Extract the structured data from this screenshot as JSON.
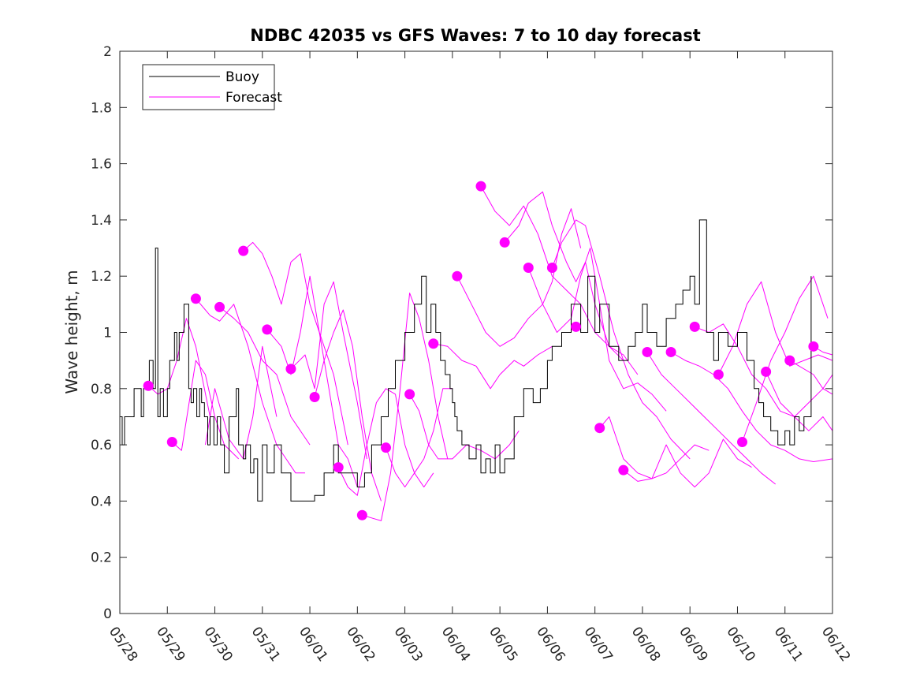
{
  "chart_data": {
    "type": "line",
    "title": "NDBC 42035 vs GFS Waves: 7 to 10 day forecast",
    "xlabel": "",
    "ylabel": "Wave height, m",
    "xlim_days": [
      0,
      15
    ],
    "ylim": [
      0,
      2
    ],
    "x_tick_labels": [
      "05/28",
      "05/29",
      "05/30",
      "05/31",
      "06/01",
      "06/02",
      "06/03",
      "06/04",
      "06/05",
      "06/06",
      "06/07",
      "06/08",
      "06/09",
      "06/10",
      "06/11",
      "06/12"
    ],
    "y_ticks": [
      0,
      0.2,
      0.4,
      0.6,
      0.8,
      1,
      1.2,
      1.4,
      1.6,
      1.8,
      2
    ],
    "y_tick_labels": [
      "0",
      "0.2",
      "0.4",
      "0.6",
      "0.8",
      "1",
      "1.2",
      "1.4",
      "1.6",
      "1.8",
      "2"
    ],
    "legend": {
      "location": "top-left",
      "entries": [
        "Buoy",
        "Forecast"
      ]
    },
    "grid": false,
    "colors": {
      "buoy": "#000000",
      "forecast": "#ff00ff"
    },
    "buoy": {
      "name": "Buoy",
      "x_days": [
        0,
        0.05,
        0.1,
        0.3,
        0.45,
        0.5,
        0.55,
        0.62,
        0.7,
        0.75,
        0.8,
        0.85,
        0.92,
        1.0,
        1.05,
        1.1,
        1.15,
        1.2,
        1.25,
        1.35,
        1.45,
        1.5,
        1.55,
        1.62,
        1.68,
        1.72,
        1.78,
        1.85,
        1.9,
        1.98,
        2.05,
        2.12,
        2.2,
        2.3,
        2.45,
        2.5,
        2.6,
        2.65,
        2.75,
        2.82,
        2.9,
        3.0,
        3.1,
        3.25,
        3.4,
        3.6,
        3.75,
        3.82,
        3.9,
        4.0,
        4.1,
        4.3,
        4.5,
        4.6,
        4.8,
        5.0,
        5.15,
        5.3,
        5.5,
        5.65,
        5.8,
        6.0,
        6.2,
        6.35,
        6.45,
        6.55,
        6.65,
        6.75,
        6.85,
        6.95,
        7.0,
        7.05,
        7.1,
        7.2,
        7.35,
        7.5,
        7.6,
        7.7,
        7.8,
        7.9,
        8.0,
        8.1,
        8.3,
        8.5,
        8.7,
        8.85,
        9.0,
        9.1,
        9.3,
        9.5,
        9.7,
        9.85,
        10.0,
        10.1,
        10.3,
        10.5,
        10.7,
        10.85,
        11.0,
        11.1,
        11.3,
        11.5,
        11.7,
        11.85,
        12.0,
        12.1,
        12.2,
        12.35,
        12.5,
        12.6,
        12.8,
        13.0,
        13.2,
        13.35,
        13.45,
        13.55,
        13.7,
        13.85,
        14.0,
        14.1,
        14.2,
        14.3,
        14.4,
        14.55
      ],
      "values": [
        0.7,
        0.6,
        0.7,
        0.8,
        0.7,
        0.8,
        0.8,
        0.9,
        0.8,
        1.3,
        0.7,
        0.8,
        0.7,
        0.8,
        0.9,
        0.9,
        1.0,
        0.9,
        1.0,
        1.1,
        0.8,
        0.75,
        0.8,
        0.7,
        0.8,
        0.75,
        0.7,
        0.6,
        0.7,
        0.6,
        0.7,
        0.6,
        0.5,
        0.7,
        0.8,
        0.6,
        0.55,
        0.6,
        0.5,
        0.55,
        0.4,
        0.6,
        0.5,
        0.6,
        0.5,
        0.4,
        0.4,
        0.4,
        0.4,
        0.4,
        0.42,
        0.5,
        0.6,
        0.5,
        0.5,
        0.45,
        0.5,
        0.6,
        0.7,
        0.8,
        0.9,
        1.0,
        1.1,
        1.2,
        1.0,
        1.1,
        1.0,
        0.9,
        0.85,
        0.8,
        0.75,
        0.7,
        0.65,
        0.6,
        0.55,
        0.6,
        0.5,
        0.55,
        0.5,
        0.6,
        0.5,
        0.55,
        0.7,
        0.8,
        0.75,
        0.8,
        0.9,
        0.95,
        1.0,
        1.1,
        1.0,
        1.2,
        1.0,
        1.1,
        0.95,
        0.9,
        0.95,
        1.0,
        1.1,
        1.0,
        0.95,
        1.05,
        1.1,
        1.15,
        1.2,
        1.1,
        1.4,
        1.0,
        0.9,
        1.0,
        0.95,
        1.0,
        0.9,
        0.8,
        0.75,
        0.7,
        0.65,
        0.6,
        0.65,
        0.6,
        0.7,
        0.65,
        0.7,
        1.2
      ]
    },
    "forecast_points": {
      "x_days": [
        0.6,
        1.1,
        1.6,
        2.1,
        2.6,
        3.1,
        3.6,
        4.1,
        4.6,
        5.1,
        5.6,
        6.1,
        6.6,
        7.1,
        7.6,
        8.1,
        8.6,
        9.1,
        9.6,
        10.1,
        10.6,
        11.1,
        11.6,
        12.1,
        12.6,
        13.1,
        13.6,
        14.1,
        14.6
      ],
      "values": [
        0.81,
        0.61,
        1.12,
        1.09,
        1.29,
        1.01,
        0.87,
        0.77,
        0.52,
        0.35,
        0.59,
        0.78,
        0.96,
        1.2,
        1.52,
        1.32,
        1.23,
        1.23,
        1.02,
        0.66,
        0.51,
        0.93,
        0.93,
        1.02,
        0.85,
        0.61,
        0.86,
        0.9,
        0.95
      ]
    },
    "forecast_series": [
      {
        "x_days": [
          0.6,
          0.8,
          1.0,
          1.2,
          1.4,
          1.6,
          1.9
        ],
        "values": [
          0.81,
          0.78,
          0.8,
          0.9,
          1.05,
          0.95,
          0.7
        ]
      },
      {
        "x_days": [
          1.1,
          1.3,
          1.6,
          1.8,
          2.0,
          2.2,
          2.5
        ],
        "values": [
          0.61,
          0.58,
          0.9,
          0.85,
          0.7,
          0.6,
          0.55
        ]
      },
      {
        "x_days": [
          1.6,
          1.9,
          2.1,
          2.4,
          2.7,
          3.0,
          3.3,
          3.5,
          3.7,
          3.9
        ],
        "values": [
          1.12,
          1.06,
          1.04,
          1.1,
          0.95,
          0.75,
          0.6,
          0.55,
          0.5,
          0.5
        ]
      },
      {
        "x_days": [
          1.8,
          2.0,
          2.3,
          2.6,
          2.8,
          3.0,
          3.3
        ],
        "values": [
          0.6,
          0.8,
          0.62,
          0.55,
          0.7,
          0.95,
          0.7
        ]
      },
      {
        "x_days": [
          2.1,
          2.4,
          2.7,
          3.0,
          3.3,
          3.6,
          4.0
        ],
        "values": [
          1.09,
          1.05,
          1.0,
          0.9,
          0.85,
          0.7,
          0.6
        ]
      },
      {
        "x_days": [
          2.6,
          2.8,
          3.0,
          3.2,
          3.4,
          3.6,
          3.8,
          4.0,
          4.3,
          4.5,
          4.8
        ],
        "values": [
          1.29,
          1.32,
          1.28,
          1.2,
          1.1,
          1.25,
          1.28,
          1.1,
          0.95,
          0.85,
          0.6
        ]
      },
      {
        "x_days": [
          3.1,
          3.4,
          3.6,
          3.8,
          4.0,
          4.2,
          4.4,
          4.6,
          4.8,
          5.0
        ],
        "values": [
          1.01,
          0.95,
          0.85,
          1.0,
          1.2,
          1.0,
          0.8,
          0.6,
          0.55,
          0.45
        ]
      },
      {
        "x_days": [
          3.6,
          3.9,
          4.1,
          4.3,
          4.5,
          4.7,
          5.0,
          5.2
        ],
        "values": [
          0.87,
          0.92,
          0.8,
          1.1,
          1.18,
          1.0,
          0.75,
          0.55
        ]
      },
      {
        "x_days": [
          4.1,
          4.3,
          4.5,
          4.7,
          4.9,
          5.1,
          5.3,
          5.5
        ],
        "values": [
          0.77,
          0.9,
          1.0,
          1.08,
          0.95,
          0.7,
          0.5,
          0.4
        ]
      },
      {
        "x_days": [
          4.6,
          4.8,
          5.0,
          5.2,
          5.4,
          5.6,
          5.8,
          6.0,
          6.2,
          6.4,
          6.6
        ],
        "values": [
          0.52,
          0.45,
          0.42,
          0.6,
          0.75,
          0.8,
          0.78,
          0.6,
          0.5,
          0.45,
          0.5
        ]
      },
      {
        "x_days": [
          5.1,
          5.3,
          5.5,
          5.7,
          5.9,
          6.1,
          6.3,
          6.5,
          6.7,
          6.9
        ],
        "values": [
          0.35,
          0.34,
          0.33,
          0.5,
          0.8,
          1.14,
          1.05,
          0.9,
          0.7,
          0.55
        ]
      },
      {
        "x_days": [
          5.6,
          5.8,
          6.0,
          6.2,
          6.4,
          6.6,
          6.8,
          7.0
        ],
        "values": [
          0.59,
          0.5,
          0.45,
          0.5,
          0.55,
          0.65,
          0.8,
          0.8
        ]
      },
      {
        "x_days": [
          6.1,
          6.3,
          6.5,
          6.7,
          7.0,
          7.3,
          7.6,
          7.9,
          8.2,
          8.4
        ],
        "values": [
          0.78,
          0.72,
          0.6,
          0.55,
          0.55,
          0.6,
          0.58,
          0.55,
          0.6,
          0.65
        ]
      },
      {
        "x_days": [
          6.6,
          6.9,
          7.2,
          7.5,
          7.8,
          8.0,
          8.3,
          8.5,
          8.8,
          9.1
        ],
        "values": [
          0.96,
          0.95,
          0.9,
          0.88,
          0.8,
          0.85,
          0.9,
          0.88,
          0.92,
          0.95
        ]
      },
      {
        "x_days": [
          7.1,
          7.4,
          7.7,
          8.0,
          8.3,
          8.6,
          8.9,
          9.1,
          9.3,
          9.5,
          9.7
        ],
        "values": [
          1.2,
          1.1,
          1.0,
          0.95,
          0.98,
          1.05,
          1.1,
          1.18,
          1.35,
          1.44,
          1.3
        ]
      },
      {
        "x_days": [
          7.6,
          7.9,
          8.2,
          8.5,
          8.8,
          9.1,
          9.4,
          9.7,
          10.0,
          10.3,
          10.6,
          10.9
        ],
        "values": [
          1.52,
          1.43,
          1.38,
          1.45,
          1.35,
          1.2,
          1.15,
          1.1,
          1.0,
          0.95,
          0.92,
          0.85
        ]
      },
      {
        "x_days": [
          8.1,
          8.4,
          8.6,
          8.9,
          9.1,
          9.4,
          9.6,
          9.8,
          10.0,
          10.3,
          10.6
        ],
        "values": [
          1.32,
          1.38,
          1.46,
          1.5,
          1.38,
          1.25,
          1.18,
          1.25,
          1.1,
          0.95,
          0.9
        ]
      },
      {
        "x_days": [
          8.6,
          8.9,
          9.2,
          9.5,
          9.7,
          9.9,
          10.1,
          10.3,
          10.6,
          10.9,
          11.2,
          11.5
        ],
        "values": [
          1.23,
          1.1,
          1.0,
          1.05,
          1.2,
          1.3,
          1.1,
          0.9,
          0.8,
          0.82,
          0.78,
          0.72
        ]
      },
      {
        "x_days": [
          9.1,
          9.3,
          9.6,
          9.8,
          10.1,
          10.4,
          10.7,
          11.0,
          11.3,
          11.6,
          12.0
        ],
        "values": [
          1.23,
          1.32,
          1.4,
          1.38,
          1.2,
          1.0,
          0.85,
          0.75,
          0.7,
          0.62,
          0.55
        ]
      },
      {
        "x_days": [
          10.1,
          10.3,
          10.6,
          10.9,
          11.2,
          11.5,
          11.8,
          12.1,
          12.4
        ],
        "values": [
          0.66,
          0.7,
          0.55,
          0.5,
          0.48,
          0.5,
          0.55,
          0.6,
          0.58
        ]
      },
      {
        "x_days": [
          10.6,
          10.9,
          11.2,
          11.5,
          11.8,
          12.1,
          12.4,
          12.7,
          13.0,
          13.3
        ],
        "values": [
          0.51,
          0.47,
          0.48,
          0.6,
          0.5,
          0.45,
          0.5,
          0.62,
          0.55,
          0.52
        ]
      },
      {
        "x_days": [
          11.1,
          11.4,
          11.7,
          12.0,
          12.3,
          12.6,
          12.9,
          13.2,
          13.5,
          13.8
        ],
        "values": [
          0.93,
          0.85,
          0.8,
          0.75,
          0.7,
          0.65,
          0.6,
          0.55,
          0.5,
          0.46
        ]
      },
      {
        "x_days": [
          11.6,
          11.9,
          12.2,
          12.5,
          12.8,
          13.1,
          13.4,
          13.7,
          14.0,
          14.3,
          14.6,
          15.0
        ],
        "values": [
          0.93,
          0.9,
          0.88,
          0.85,
          0.8,
          0.72,
          0.65,
          0.6,
          0.58,
          0.55,
          0.54,
          0.55
        ]
      },
      {
        "x_days": [
          12.1,
          12.4,
          12.7,
          13.0,
          13.3,
          13.6,
          13.9,
          14.2,
          14.5,
          14.8,
          15.0
        ],
        "values": [
          1.02,
          1.0,
          1.03,
          0.95,
          0.85,
          0.8,
          0.72,
          0.7,
          0.75,
          0.8,
          0.85
        ]
      },
      {
        "x_days": [
          12.6,
          12.9,
          13.2,
          13.5,
          13.8,
          14.1,
          14.4,
          14.7,
          15.0
        ],
        "values": [
          0.85,
          0.95,
          1.1,
          1.18,
          1.0,
          0.88,
          0.9,
          0.92,
          0.9
        ]
      },
      {
        "x_days": [
          13.1,
          13.4,
          13.7,
          14.0,
          14.3,
          14.6,
          14.9
        ],
        "values": [
          0.61,
          0.75,
          0.9,
          1.0,
          1.12,
          1.2,
          1.05
        ]
      },
      {
        "x_days": [
          13.6,
          13.9,
          14.2,
          14.5,
          14.8,
          15.0
        ],
        "values": [
          0.86,
          0.75,
          0.7,
          0.65,
          0.7,
          0.65
        ]
      },
      {
        "x_days": [
          14.1,
          14.3,
          14.6,
          14.8,
          15.0
        ],
        "values": [
          0.9,
          0.88,
          0.85,
          0.8,
          0.78
        ]
      },
      {
        "x_days": [
          14.6,
          14.8,
          15.0
        ],
        "values": [
          0.95,
          0.93,
          0.92
        ]
      }
    ]
  }
}
